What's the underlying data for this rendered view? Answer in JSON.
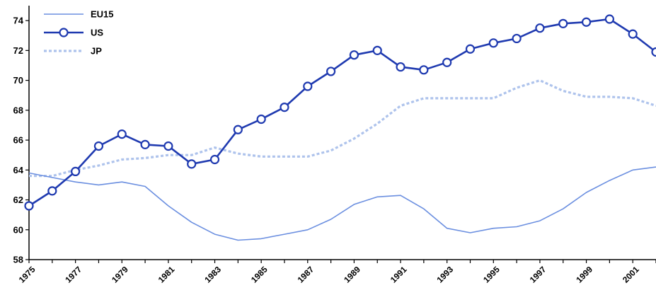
{
  "chart_data": {
    "type": "line",
    "x": [
      1975,
      1976,
      1977,
      1978,
      1979,
      1980,
      1981,
      1982,
      1983,
      1984,
      1985,
      1986,
      1987,
      1988,
      1989,
      1990,
      1991,
      1992,
      1993,
      1994,
      1995,
      1996,
      1997,
      1998,
      1999,
      2000,
      2001,
      2002
    ],
    "xtick_values": [
      1975,
      1977,
      1979,
      1981,
      1983,
      1985,
      1987,
      1989,
      1991,
      1993,
      1995,
      1997,
      1999,
      2001
    ],
    "xtick_labels": [
      "1975",
      "1977",
      "1979",
      "1981",
      "1983",
      "1985",
      "1987",
      "1989",
      "1991",
      "1993",
      "1995",
      "1997",
      "1999",
      "2001"
    ],
    "ylim": [
      58,
      75
    ],
    "yticks": [
      58,
      60,
      62,
      64,
      66,
      68,
      70,
      72,
      74
    ],
    "grid": false,
    "legend_position": "top-left",
    "series": [
      {
        "name": "EU15",
        "color": "#6b8fe0",
        "style": "solid-thin",
        "values": [
          63.8,
          63.5,
          63.2,
          63.0,
          63.2,
          62.9,
          61.6,
          60.5,
          59.7,
          59.3,
          59.4,
          59.7,
          60.0,
          60.7,
          61.7,
          62.2,
          62.3,
          61.4,
          60.1,
          59.8,
          60.1,
          60.2,
          60.6,
          61.4,
          62.5,
          63.3,
          64.0,
          64.2
        ]
      },
      {
        "name": "US",
        "color": "#1f3ab0",
        "style": "solid-markers",
        "values": [
          61.6,
          62.6,
          63.9,
          65.6,
          66.4,
          65.7,
          65.6,
          64.4,
          64.7,
          66.7,
          67.4,
          68.2,
          69.6,
          70.6,
          71.7,
          72.0,
          70.9,
          70.7,
          71.2,
          72.1,
          72.5,
          72.8,
          73.5,
          73.8,
          73.9,
          74.1,
          73.1,
          71.9
        ]
      },
      {
        "name": "JP",
        "color": "#aec3ec",
        "style": "dotted-thick",
        "values": [
          63.6,
          63.6,
          64.0,
          64.3,
          64.7,
          64.8,
          65.0,
          65.0,
          65.5,
          65.1,
          64.9,
          64.9,
          64.9,
          65.3,
          66.1,
          67.1,
          68.3,
          68.8,
          68.8,
          68.8,
          68.8,
          69.5,
          70.0,
          69.3,
          68.9,
          68.9,
          68.8,
          68.3
        ]
      }
    ]
  }
}
